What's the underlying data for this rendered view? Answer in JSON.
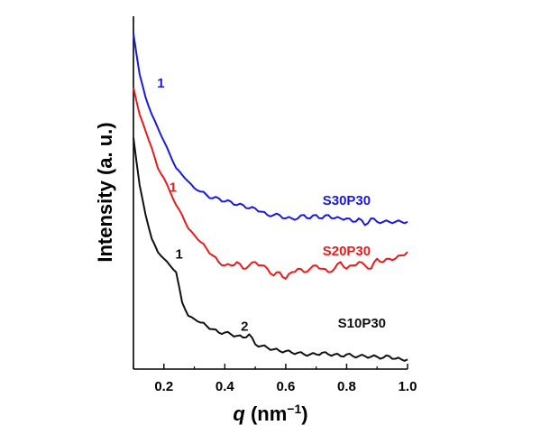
{
  "chart_data": {
    "type": "line",
    "ylabel": "Intensity (a. u.)",
    "xlabel_italic": "q",
    "xlabel_unit": " (nm",
    "xlabel_exp": "−1",
    "xlabel_close": ")",
    "xlim": [
      0.1,
      1.0
    ],
    "ylim": [
      0,
      1
    ],
    "xticks": [
      {
        "value": 0.2,
        "label": "0.2"
      },
      {
        "value": 0.4,
        "label": "0.4"
      },
      {
        "value": 0.6,
        "label": "0.6"
      },
      {
        "value": 0.8,
        "label": "0.8"
      },
      {
        "value": 1.0,
        "label": "1.0"
      }
    ],
    "series": [
      {
        "name": "S30P30",
        "color": "#1a1adf",
        "x": [
          0.1,
          0.12,
          0.14,
          0.16,
          0.18,
          0.2,
          0.22,
          0.24,
          0.26,
          0.28,
          0.3,
          0.32,
          0.34,
          0.36,
          0.38,
          0.4,
          0.42,
          0.44,
          0.46,
          0.48,
          0.5,
          0.52,
          0.54,
          0.56,
          0.58,
          0.6,
          0.62,
          0.64,
          0.66,
          0.68,
          0.7,
          0.72,
          0.74,
          0.76,
          0.78,
          0.8,
          0.82,
          0.84,
          0.86,
          0.88,
          0.9,
          0.92,
          0.94,
          0.96,
          0.98,
          1.0
        ],
        "y": [
          0.98,
          0.86,
          0.79,
          0.74,
          0.7,
          0.66,
          0.62,
          0.58,
          0.56,
          0.54,
          0.52,
          0.51,
          0.5,
          0.49,
          0.49,
          0.48,
          0.48,
          0.47,
          0.47,
          0.46,
          0.46,
          0.45,
          0.44,
          0.44,
          0.44,
          0.43,
          0.43,
          0.43,
          0.44,
          0.43,
          0.44,
          0.43,
          0.44,
          0.43,
          0.43,
          0.43,
          0.42,
          0.43,
          0.41,
          0.43,
          0.42,
          0.42,
          0.42,
          0.42,
          0.42,
          0.42
        ]
      },
      {
        "name": "S20P30",
        "color": "#ea1b1b",
        "x": [
          0.1,
          0.12,
          0.14,
          0.16,
          0.18,
          0.2,
          0.22,
          0.24,
          0.26,
          0.28,
          0.3,
          0.32,
          0.34,
          0.36,
          0.38,
          0.4,
          0.42,
          0.44,
          0.46,
          0.48,
          0.5,
          0.52,
          0.54,
          0.56,
          0.58,
          0.6,
          0.62,
          0.64,
          0.66,
          0.68,
          0.7,
          0.72,
          0.74,
          0.76,
          0.78,
          0.8,
          0.82,
          0.84,
          0.86,
          0.88,
          0.9,
          0.92,
          0.94,
          0.96,
          0.98,
          1.0
        ],
        "y": [
          0.82,
          0.74,
          0.69,
          0.64,
          0.58,
          0.55,
          0.51,
          0.47,
          0.44,
          0.4,
          0.38,
          0.36,
          0.34,
          0.32,
          0.3,
          0.29,
          0.29,
          0.3,
          0.28,
          0.29,
          0.3,
          0.29,
          0.28,
          0.26,
          0.27,
          0.25,
          0.27,
          0.28,
          0.27,
          0.28,
          0.29,
          0.28,
          0.27,
          0.28,
          0.3,
          0.28,
          0.29,
          0.3,
          0.29,
          0.28,
          0.31,
          0.3,
          0.31,
          0.31,
          0.32,
          0.33
        ]
      },
      {
        "name": "S10P30",
        "color": "#111111",
        "x": [
          0.1,
          0.12,
          0.14,
          0.16,
          0.18,
          0.2,
          0.22,
          0.24,
          0.26,
          0.28,
          0.3,
          0.32,
          0.34,
          0.36,
          0.38,
          0.4,
          0.42,
          0.44,
          0.46,
          0.48,
          0.5,
          0.52,
          0.54,
          0.56,
          0.58,
          0.6,
          0.62,
          0.64,
          0.66,
          0.68,
          0.7,
          0.72,
          0.74,
          0.76,
          0.78,
          0.8,
          0.82,
          0.84,
          0.86,
          0.88,
          0.9,
          0.92,
          0.94,
          0.96,
          0.98,
          1.0
        ],
        "y": [
          0.67,
          0.53,
          0.44,
          0.37,
          0.33,
          0.31,
          0.29,
          0.27,
          0.18,
          0.14,
          0.13,
          0.12,
          0.11,
          0.1,
          0.09,
          0.09,
          0.085,
          0.08,
          0.075,
          0.085,
          0.055,
          0.05,
          0.045,
          0.04,
          0.035,
          0.035,
          0.03,
          0.03,
          0.025,
          0.025,
          0.025,
          0.03,
          0.025,
          0.025,
          0.02,
          0.025,
          0.02,
          0.02,
          0.02,
          0.018,
          0.018,
          0.015,
          0.02,
          0.012,
          0.01,
          0.01
        ]
      }
    ],
    "labels": [
      {
        "text": "S30P30",
        "x": 0.8,
        "y": 0.47,
        "color": "#1a1adf"
      },
      {
        "text": "S20P30",
        "x": 0.8,
        "y": 0.32,
        "color": "#ea1b1b"
      },
      {
        "text": "S10P30",
        "x": 0.85,
        "y": 0.105,
        "color": "#111111"
      }
    ],
    "peak_labels": [
      {
        "text": "1",
        "x": 0.19,
        "y": 0.82,
        "color": "#1a1adf"
      },
      {
        "text": "1",
        "x": 0.23,
        "y": 0.51,
        "color": "#ea1b1b"
      },
      {
        "text": "1",
        "x": 0.25,
        "y": 0.31,
        "color": "#111111"
      },
      {
        "text": "2",
        "x": 0.465,
        "y": 0.095,
        "color": "#111111"
      }
    ]
  }
}
